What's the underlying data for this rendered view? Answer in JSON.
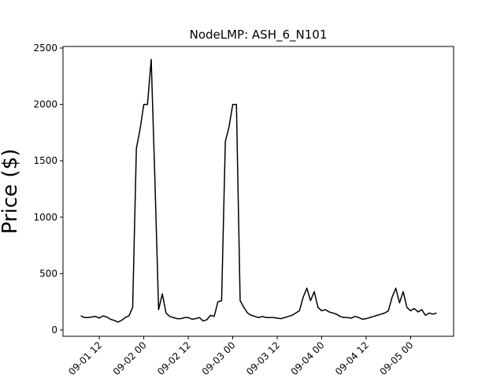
{
  "chart_data": {
    "type": "line",
    "title": "NodeLMP: ASH_6_N101",
    "ylabel": "Price ($)",
    "color": "#000000",
    "x": [
      7,
      8,
      9,
      10,
      11,
      12,
      13,
      14,
      15,
      16,
      17,
      18,
      19,
      20,
      21,
      22,
      23,
      24,
      25,
      26,
      27,
      28,
      29,
      30,
      31,
      32,
      33,
      34,
      35,
      36,
      37,
      38,
      39,
      40,
      41,
      42,
      43,
      44,
      45,
      46,
      47,
      48,
      49,
      50,
      51,
      52,
      53,
      54,
      55,
      56,
      57,
      58,
      59,
      60,
      61,
      62,
      63,
      64,
      65,
      66,
      67,
      68,
      69,
      70,
      71,
      72,
      73,
      74,
      75,
      76,
      77,
      78,
      79,
      80,
      81,
      82,
      83,
      84,
      85,
      86,
      87,
      88,
      89,
      90,
      91,
      92,
      93,
      94,
      95,
      96,
      97,
      98,
      99,
      100,
      101,
      102,
      103
    ],
    "values": [
      125,
      110,
      110,
      115,
      120,
      105,
      125,
      115,
      95,
      85,
      70,
      85,
      110,
      125,
      200,
      1610,
      1780,
      2000,
      2000,
      2400,
      1330,
      180,
      320,
      150,
      120,
      110,
      100,
      100,
      110,
      110,
      95,
      100,
      110,
      80,
      90,
      130,
      120,
      250,
      260,
      1670,
      1800,
      2000,
      2000,
      260,
      200,
      150,
      130,
      120,
      110,
      120,
      110,
      110,
      110,
      105,
      100,
      110,
      120,
      130,
      150,
      170,
      290,
      370,
      260,
      340,
      200,
      170,
      180,
      160,
      150,
      140,
      120,
      110,
      110,
      105,
      120,
      110,
      95,
      100,
      110,
      120,
      130,
      140,
      150,
      170,
      290,
      370,
      240,
      340,
      200,
      170,
      190,
      160,
      180,
      130,
      150,
      140,
      150
    ],
    "xlim": [
      2.2,
      107.6
    ],
    "ylim": [
      -56,
      2514
    ],
    "xticks": [
      {
        "value": 12,
        "label": "09-01 12"
      },
      {
        "value": 24,
        "label": "09-02 00"
      },
      {
        "value": 36,
        "label": "09-02 12"
      },
      {
        "value": 48,
        "label": "09-03 00"
      },
      {
        "value": 60,
        "label": "09-03 12"
      },
      {
        "value": 72,
        "label": "09-04 00"
      },
      {
        "value": 84,
        "label": "09-04 12"
      },
      {
        "value": 96,
        "label": "09-05 00"
      }
    ],
    "yticks": [
      0,
      500,
      1000,
      1500,
      2000,
      2500
    ]
  }
}
